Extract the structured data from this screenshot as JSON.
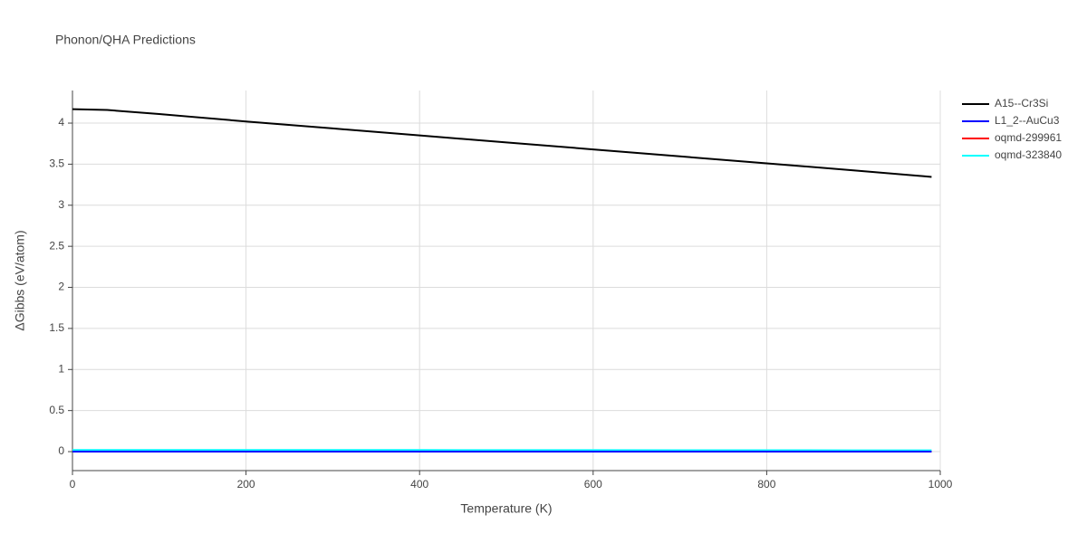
{
  "chart_data": {
    "type": "line",
    "title": "Phonon/QHA Predictions",
    "x_label": "Temperature (K)",
    "y_label": "ΔGibbs (eV/atom)",
    "x": [
      0,
      40,
      100,
      200,
      300,
      400,
      500,
      600,
      700,
      800,
      900,
      990
    ],
    "series": [
      {
        "name": "A15--Cr3Si",
        "color": "#000000",
        "values": [
          4.17,
          4.16,
          4.11,
          4.02,
          3.935,
          3.85,
          3.765,
          3.68,
          3.595,
          3.51,
          3.425,
          3.345
        ]
      },
      {
        "name": "L1_2--AuCu3",
        "color": "#0000ff",
        "values": [
          0,
          0,
          0,
          0,
          0,
          0,
          0,
          0,
          0,
          0,
          0,
          0
        ]
      },
      {
        "name": "oqmd-299961",
        "color": "#ff0000",
        "values": [
          0,
          0,
          0,
          0,
          0,
          0,
          0,
          0,
          0,
          0,
          0,
          0
        ]
      },
      {
        "name": "oqmd-323840",
        "color": "#00ffff",
        "values": [
          0.02,
          0.02,
          0.02,
          0.02,
          0.019,
          0.019,
          0.018,
          0.018,
          0.017,
          0.017,
          0.016,
          0.016
        ]
      }
    ],
    "xlim": [
      0,
      1000
    ],
    "xticks": [
      0,
      200,
      400,
      600,
      800,
      1000
    ],
    "ylim": [
      -0.231,
      4.397
    ],
    "yticks": [
      0,
      0.5,
      1,
      1.5,
      2,
      2.5,
      3,
      3.5,
      4
    ],
    "grid": true,
    "legend": "right"
  }
}
